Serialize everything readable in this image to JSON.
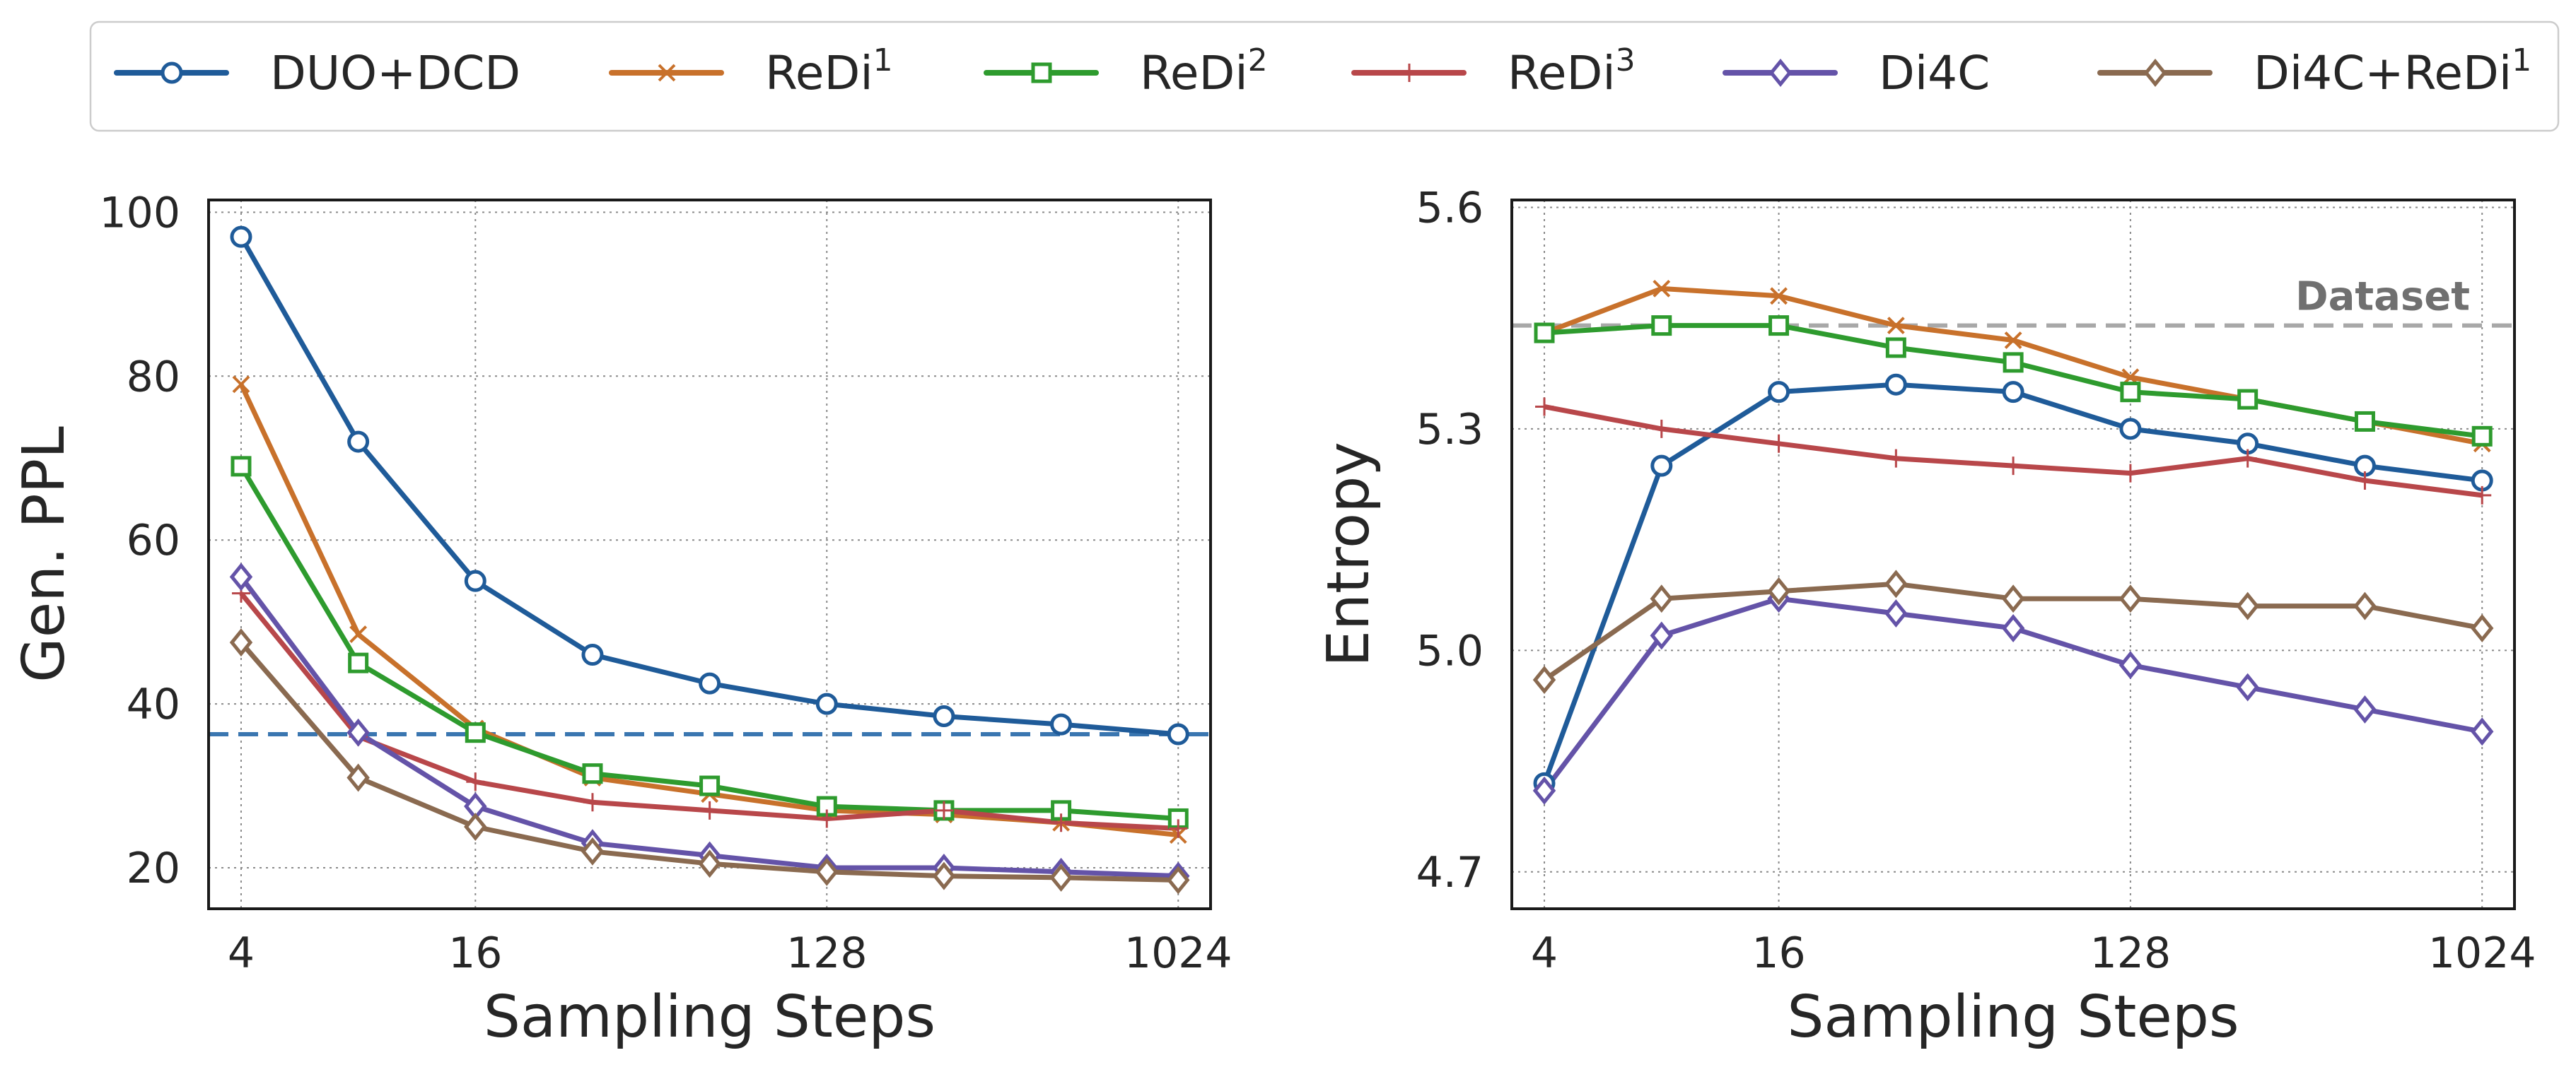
{
  "legend": {
    "placement": "top",
    "entries": [
      {
        "base": "DUO+DCD",
        "sup": "",
        "color": "#1f5b99",
        "marker": "circle"
      },
      {
        "base": "ReDi",
        "sup": "1",
        "color": "#c8712b",
        "marker": "x"
      },
      {
        "base": "ReDi",
        "sup": "2",
        "color": "#2e9b2e",
        "marker": "square"
      },
      {
        "base": "ReDi",
        "sup": "3",
        "color": "#b8474a",
        "marker": "plus"
      },
      {
        "base": "Di4C",
        "sup": "",
        "color": "#6453a8",
        "marker": "diamond"
      },
      {
        "base": "Di4C+ReDi",
        "sup": "1",
        "color": "#8a6a50",
        "marker": "diamond"
      }
    ]
  },
  "chart_data": [
    {
      "type": "line",
      "xlabel": "Sampling Steps",
      "ylabel": "Gen. PPL",
      "x_scale": "log2",
      "x": [
        4,
        8,
        16,
        32,
        64,
        128,
        256,
        512,
        1024
      ],
      "x_ticks": [
        4,
        16,
        128,
        1024
      ],
      "x_tick_labels": [
        "4",
        "16",
        "128",
        "1024"
      ],
      "xlim": [
        3.3,
        1240
      ],
      "ylim": [
        15,
        101.5
      ],
      "y_ticks": [
        20,
        40,
        60,
        80,
        100
      ],
      "y_tick_labels": [
        "20",
        "40",
        "60",
        "80",
        "100"
      ],
      "grid": true,
      "reference_line": {
        "y": 36.3,
        "color": "#3a76b0",
        "style": "dashed",
        "label": ""
      },
      "series": [
        {
          "name": "DUO+DCD",
          "values": [
            97.0,
            72.0,
            55.0,
            46.0,
            42.5,
            40.0,
            38.5,
            37.5,
            36.3
          ]
        },
        {
          "name": "ReDi1",
          "values": [
            79.0,
            48.5,
            37.0,
            31.0,
            29.0,
            27.0,
            26.5,
            25.5,
            24.0
          ]
        },
        {
          "name": "ReDi2",
          "values": [
            69.0,
            45.0,
            36.5,
            31.5,
            30.0,
            27.5,
            27.0,
            27.0,
            26.0
          ]
        },
        {
          "name": "ReDi3",
          "values": [
            53.5,
            36.0,
            30.5,
            28.0,
            27.0,
            26.0,
            27.0,
            25.5,
            24.8
          ]
        },
        {
          "name": "Di4C",
          "values": [
            55.5,
            36.5,
            27.5,
            23.0,
            21.5,
            20.0,
            20.0,
            19.5,
            19.0
          ]
        },
        {
          "name": "Di4C+ReDi1",
          "values": [
            47.5,
            31.0,
            25.0,
            22.0,
            20.5,
            19.5,
            19.0,
            18.8,
            18.5
          ]
        }
      ]
    },
    {
      "type": "line",
      "xlabel": "Sampling Steps",
      "ylabel": "Entropy",
      "x_scale": "log2",
      "x": [
        4,
        8,
        16,
        32,
        64,
        128,
        256,
        512,
        1024
      ],
      "x_ticks": [
        4,
        16,
        128,
        1024
      ],
      "x_tick_labels": [
        "4",
        "16",
        "128",
        "1024"
      ],
      "xlim": [
        3.3,
        1240
      ],
      "ylim": [
        4.65,
        5.61
      ],
      "y_ticks": [
        4.7,
        5.0,
        5.3,
        5.6
      ],
      "y_tick_labels": [
        "4.7",
        "5.0",
        "5.3",
        "5.6"
      ],
      "grid": true,
      "reference_line": {
        "y": 5.44,
        "color": "#a8a8a8",
        "style": "dashed",
        "label": "Dataset",
        "label_color": "#707070"
      },
      "series": [
        {
          "name": "DUO+DCD",
          "values": [
            4.82,
            5.25,
            5.35,
            5.36,
            5.35,
            5.3,
            5.28,
            5.25,
            5.23
          ]
        },
        {
          "name": "ReDi1",
          "values": [
            5.43,
            5.49,
            5.48,
            5.44,
            5.42,
            5.37,
            5.34,
            5.31,
            5.28
          ]
        },
        {
          "name": "ReDi2",
          "values": [
            5.43,
            5.44,
            5.44,
            5.41,
            5.39,
            5.35,
            5.34,
            5.31,
            5.29
          ]
        },
        {
          "name": "ReDi3",
          "values": [
            5.33,
            5.3,
            5.28,
            5.26,
            5.25,
            5.24,
            5.26,
            5.23,
            5.21
          ]
        },
        {
          "name": "Di4C",
          "values": [
            4.81,
            5.02,
            5.07,
            5.05,
            5.03,
            4.98,
            4.95,
            4.92,
            4.89
          ]
        },
        {
          "name": "Di4C+ReDi1",
          "values": [
            4.96,
            5.07,
            5.08,
            5.09,
            5.07,
            5.07,
            5.06,
            5.06,
            5.03
          ]
        }
      ]
    }
  ]
}
